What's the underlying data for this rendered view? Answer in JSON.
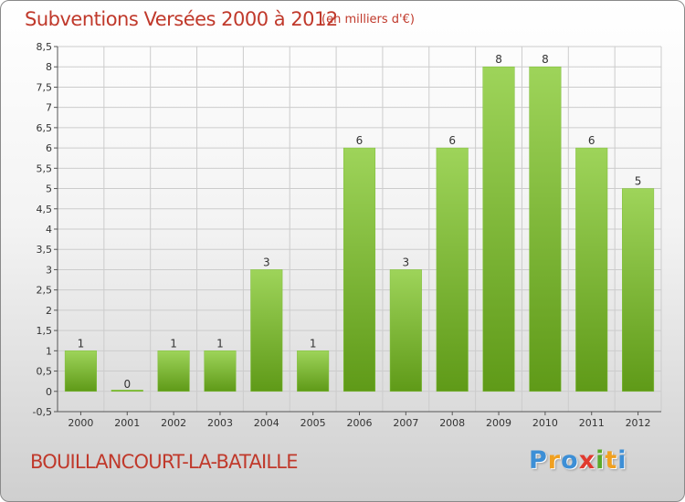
{
  "header": {
    "title": "Subventions Versées 2000 à 2012",
    "subtitle": "(en milliers d'€)"
  },
  "footer": {
    "commune": "BOUILLANCOURT-LA-BATAILLE",
    "brand_letters": [
      {
        "ch": "P",
        "color": "#3d8fd6"
      },
      {
        "ch": "r",
        "color": "#f0a020"
      },
      {
        "ch": "o",
        "color": "#3d8fd6"
      },
      {
        "ch": "x",
        "color": "#e03a2f"
      },
      {
        "ch": "i",
        "color": "#5aaa2a"
      },
      {
        "ch": "t",
        "color": "#f0a020"
      },
      {
        "ch": "i",
        "color": "#3d8fd6"
      }
    ]
  },
  "colors": {
    "title": "#c0392b",
    "bar_light": "#9ed45a",
    "bar_dark": "#5f9a18",
    "grid": "#cccccc"
  },
  "chart_data": {
    "type": "bar",
    "title": "Subventions Versées 2000 à 2012",
    "subtitle": "(en milliers d'€)",
    "categories": [
      "2000",
      "2001",
      "2002",
      "2003",
      "2004",
      "2005",
      "2006",
      "2007",
      "2008",
      "2009",
      "2010",
      "2011",
      "2012"
    ],
    "values": [
      1,
      0,
      1,
      1,
      3,
      1,
      6,
      3,
      6,
      8,
      8,
      6,
      5
    ],
    "ylim": [
      -0.5,
      8.5
    ],
    "yticks": [
      "-0,5",
      "0",
      "0,5",
      "1",
      "1,5",
      "2",
      "2,5",
      "3",
      "3,5",
      "4",
      "4,5",
      "5",
      "5,5",
      "6",
      "6,5",
      "7",
      "7,5",
      "8",
      "8,5"
    ],
    "grid": true,
    "xlabel": "",
    "ylabel": ""
  }
}
